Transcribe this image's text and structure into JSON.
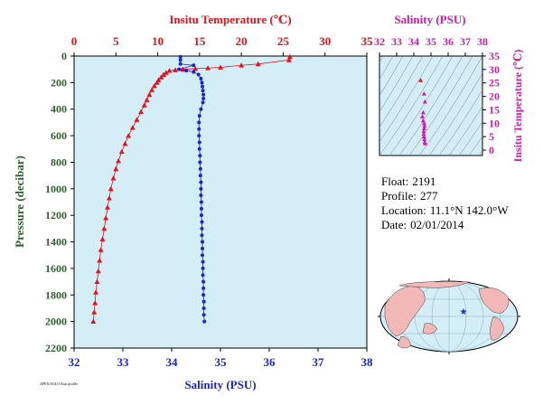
{
  "colors": {
    "plot_bg": "#d4eef8",
    "temperature": "#e8121a",
    "salinity": "#1a24d6",
    "ts_axis": "#d41aa6",
    "pressure_axis": "#2e5e2e"
  },
  "main_plot": {
    "top_axis_label": "Insitu Temperature (℃)",
    "bottom_axis_label": "Salinity (PSU)",
    "left_axis_label": "Pressure (decibar)",
    "footer_note": "APEX/SOLO float profile"
  },
  "ts_plot": {
    "top_axis_label": "Salinity (PSU)",
    "right_axis_label": "Insitu Temperature (℃)"
  },
  "info": {
    "float_label": "Float:",
    "float_value": "2191",
    "profile_label": "Profile:",
    "profile_value": "277",
    "location_label": "Location:",
    "location_value": "11.1°N  142.0°W",
    "date_label": "Date:",
    "date_value": "02/01/2014"
  },
  "chart_data": [
    {
      "type": "scatter",
      "title": "",
      "xlabel": "Salinity (PSU)",
      "x2label": "Insitu Temperature (℃)",
      "ylabel": "Pressure (decibar)",
      "xlim": [
        32,
        38
      ],
      "x2lim": [
        0,
        35
      ],
      "ylim": [
        2200,
        0
      ],
      "xticks": [
        32,
        33,
        34,
        35,
        36,
        37,
        38
      ],
      "x2ticks": [
        0,
        5,
        10,
        15,
        20,
        25,
        30,
        35
      ],
      "yticks": [
        0,
        200,
        400,
        600,
        800,
        1000,
        1200,
        1400,
        1600,
        1800,
        2000,
        2200
      ],
      "series": [
        {
          "name": "Insitu Temperature",
          "axis": "x2",
          "marker": "triangle",
          "points": [
            [
              25.8,
              5
            ],
            [
              25.7,
              30
            ],
            [
              22,
              60
            ],
            [
              20,
              70
            ],
            [
              17.5,
              85
            ],
            [
              16,
              90
            ],
            [
              14.5,
              95
            ],
            [
              13,
              100
            ],
            [
              12.1,
              105
            ],
            [
              11.4,
              110
            ],
            [
              11,
              125
            ],
            [
              10.7,
              140
            ],
            [
              10.4,
              160
            ],
            [
              10.1,
              180
            ],
            [
              9.9,
              200
            ],
            [
              9.6,
              225
            ],
            [
              9.3,
              255
            ],
            [
              9.0,
              290
            ],
            [
              8.7,
              330
            ],
            [
              8.4,
              370
            ],
            [
              8.0,
              420
            ],
            [
              7.5,
              480
            ],
            [
              7.0,
              540
            ],
            [
              6.5,
              600
            ],
            [
              6.1,
              660
            ],
            [
              5.7,
              720
            ],
            [
              5.3,
              790
            ],
            [
              5.0,
              850
            ],
            [
              4.7,
              920
            ],
            [
              4.4,
              1000
            ],
            [
              4.2,
              1070
            ],
            [
              4.0,
              1140
            ],
            [
              3.8,
              1220
            ],
            [
              3.6,
              1300
            ],
            [
              3.4,
              1380
            ],
            [
              3.2,
              1460
            ],
            [
              3.05,
              1540
            ],
            [
              2.9,
              1620
            ],
            [
              2.75,
              1700
            ],
            [
              2.6,
              1780
            ],
            [
              2.5,
              1860
            ],
            [
              2.4,
              1930
            ],
            [
              2.3,
              2000
            ]
          ]
        },
        {
          "name": "Salinity",
          "axis": "x",
          "marker": "circle",
          "points": [
            [
              34.18,
              5
            ],
            [
              34.18,
              30
            ],
            [
              34.18,
              60
            ],
            [
              34.45,
              70
            ],
            [
              34.15,
              100
            ],
            [
              34.3,
              110
            ],
            [
              34.45,
              120
            ],
            [
              34.55,
              140
            ],
            [
              34.6,
              170
            ],
            [
              34.62,
              200
            ],
            [
              34.63,
              230
            ],
            [
              34.64,
              260
            ],
            [
              34.65,
              290
            ],
            [
              34.65,
              320
            ],
            [
              34.64,
              350
            ],
            [
              34.6,
              400
            ],
            [
              34.57,
              450
            ],
            [
              34.56,
              500
            ],
            [
              34.56,
              550
            ],
            [
              34.56,
              600
            ],
            [
              34.57,
              650
            ],
            [
              34.57,
              700
            ],
            [
              34.58,
              750
            ],
            [
              34.58,
              800
            ],
            [
              34.59,
              850
            ],
            [
              34.59,
              900
            ],
            [
              34.6,
              950
            ],
            [
              34.6,
              1000
            ],
            [
              34.6,
              1050
            ],
            [
              34.61,
              1100
            ],
            [
              34.61,
              1150
            ],
            [
              34.61,
              1200
            ],
            [
              34.62,
              1250
            ],
            [
              34.62,
              1300
            ],
            [
              34.62,
              1350
            ],
            [
              34.63,
              1400
            ],
            [
              34.63,
              1450
            ],
            [
              34.63,
              1500
            ],
            [
              34.64,
              1550
            ],
            [
              34.64,
              1600
            ],
            [
              34.64,
              1650
            ],
            [
              34.65,
              1700
            ],
            [
              34.65,
              1750
            ],
            [
              34.65,
              1800
            ],
            [
              34.66,
              1850
            ],
            [
              34.66,
              1900
            ],
            [
              34.66,
              1950
            ],
            [
              34.67,
              2000
            ]
          ]
        }
      ]
    },
    {
      "type": "scatter",
      "title": "",
      "xlabel": "Salinity (PSU)",
      "ylabel": "Insitu Temperature (℃)",
      "xlim": [
        32,
        38
      ],
      "ylim": [
        -2,
        35
      ],
      "xticks": [
        32,
        33,
        34,
        35,
        36,
        37,
        38
      ],
      "yticks": [
        0,
        5,
        10,
        15,
        20,
        25,
        30,
        35
      ],
      "series": [
        {
          "name": "T-S",
          "marker": "triangle",
          "points": [
            [
              34.4,
              26
            ],
            [
              34.6,
              21
            ],
            [
              34.65,
              18
            ],
            [
              34.55,
              14
            ],
            [
              34.5,
              12.5
            ],
            [
              34.55,
              11
            ],
            [
              34.6,
              10
            ],
            [
              34.62,
              9
            ],
            [
              34.6,
              8
            ],
            [
              34.58,
              7
            ],
            [
              34.58,
              6
            ],
            [
              34.6,
              5
            ],
            [
              34.62,
              4
            ],
            [
              34.64,
              3
            ],
            [
              34.66,
              2.5
            ]
          ]
        }
      ]
    }
  ]
}
